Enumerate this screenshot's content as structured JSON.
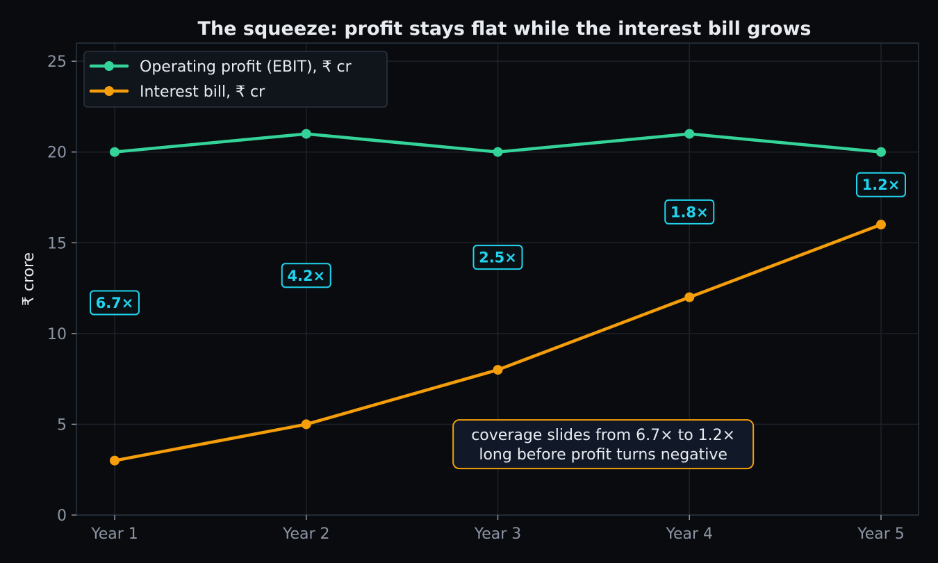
{
  "chart_data": {
    "type": "line",
    "title": "The squeeze: profit stays flat while the interest bill grows",
    "xlabel": "",
    "ylabel": "₹ crore",
    "categories": [
      "Year 1",
      "Year 2",
      "Year 3",
      "Year 4",
      "Year 5"
    ],
    "ylim": [
      0,
      26
    ],
    "yticks": [
      0,
      5,
      10,
      15,
      20,
      25
    ],
    "grid": true,
    "legend_position": "top-left",
    "series": [
      {
        "name": "Operating profit (EBIT), ₹ cr",
        "color": "#34d399",
        "values": [
          20,
          21,
          20,
          21,
          20
        ]
      },
      {
        "name": "Interest bill, ₹ cr",
        "color": "#f59e0b",
        "values": [
          3,
          5,
          8,
          12,
          16
        ]
      }
    ],
    "coverage_labels": [
      {
        "category": "Year 1",
        "y": 11.7,
        "text": "6.7×"
      },
      {
        "category": "Year 2",
        "y": 13.2,
        "text": "4.2×"
      },
      {
        "category": "Year 3",
        "y": 14.2,
        "text": "2.5×"
      },
      {
        "category": "Year 4",
        "y": 16.7,
        "text": "1.8×"
      },
      {
        "category": "Year 5",
        "y": 18.2,
        "text": "1.2×"
      }
    ],
    "annotation": {
      "lines": [
        "coverage slides from 6.7× to 1.2×",
        "long before profit turns negative"
      ],
      "x_category_position": 2.55,
      "y": 3.9
    },
    "colors": {
      "background": "#0a0b0e",
      "grid": "#1c222b",
      "spine": "#2a3441",
      "tick": "#8b95a4",
      "text": "#e8ecf1",
      "badge": "#22d3ee",
      "note_border": "#f59e0b",
      "note_fill": "#111827",
      "legend_fill": "#10141b",
      "legend_border": "#2a3441"
    }
  }
}
